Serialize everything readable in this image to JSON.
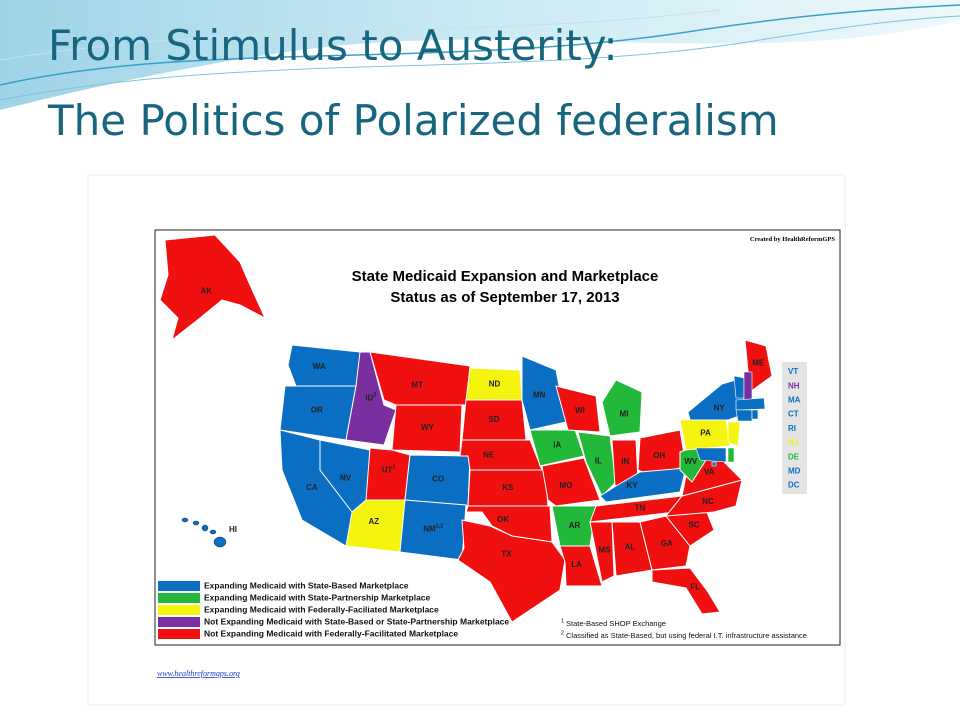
{
  "header": {
    "title_line_1": "From Stimulus to Austerity:",
    "title_line_2": "The Politics of Polarized federalism"
  },
  "map": {
    "title_line_1": "State Medicaid Expansion and Marketplace",
    "title_line_2": "Status as of September 17, 2013",
    "credit": "Created by HealthReformGPS",
    "legend": [
      {
        "color": "#0a6fc2",
        "label": "Expanding Medicaid with State-Based Marketplace"
      },
      {
        "color": "#22b83a",
        "label": "Expanding Medicaid with State-Partnership Marketplace"
      },
      {
        "color": "#f4f40e",
        "label": "Expanding Medicaid with Federally-Faciliated Marketplace"
      },
      {
        "color": "#7a2fa0",
        "label": "Not Expanding Medicaid with State-Based or State-Partnership Marketplace"
      },
      {
        "color": "#f01010",
        "label": "Not Expanding Medicaid with Federally-Facilitated Marketplace"
      }
    ],
    "states": [
      {
        "label": "AK",
        "status": 4
      },
      {
        "label": "HI",
        "status": 0
      },
      {
        "label": "WA",
        "status": 0
      },
      {
        "label": "OR",
        "status": 0
      },
      {
        "label": "CA",
        "status": 0
      },
      {
        "label": "NV",
        "status": 0
      },
      {
        "label": "ID",
        "note": "2",
        "status": 3
      },
      {
        "label": "MT",
        "status": 4
      },
      {
        "label": "WY",
        "status": 4
      },
      {
        "label": "UT",
        "note": "1",
        "status": 4
      },
      {
        "label": "CO",
        "status": 0
      },
      {
        "label": "AZ",
        "status": 2
      },
      {
        "label": "NM",
        "note": "1,2",
        "status": 0
      },
      {
        "label": "ND",
        "status": 2
      },
      {
        "label": "SD",
        "status": 4
      },
      {
        "label": "NE",
        "status": 4
      },
      {
        "label": "KS",
        "status": 4
      },
      {
        "label": "OK",
        "status": 4
      },
      {
        "label": "TX",
        "status": 4
      },
      {
        "label": "MN",
        "status": 0
      },
      {
        "label": "IA",
        "status": 1
      },
      {
        "label": "MO",
        "status": 4
      },
      {
        "label": "AR",
        "status": 1
      },
      {
        "label": "LA",
        "status": 4
      },
      {
        "label": "WI",
        "status": 4
      },
      {
        "label": "MI",
        "status": 1
      },
      {
        "label": "IL",
        "status": 1
      },
      {
        "label": "IN",
        "status": 4
      },
      {
        "label": "OH",
        "status": 4
      },
      {
        "label": "KY",
        "status": 0
      },
      {
        "label": "TN",
        "status": 4
      },
      {
        "label": "MS",
        "status": 4
      },
      {
        "label": "AL",
        "status": 4
      },
      {
        "label": "GA",
        "status": 4
      },
      {
        "label": "FL",
        "status": 4
      },
      {
        "label": "SC",
        "status": 4
      },
      {
        "label": "NC",
        "status": 4
      },
      {
        "label": "VA",
        "status": 4
      },
      {
        "label": "WV",
        "status": 1
      },
      {
        "label": "PA",
        "status": 2
      },
      {
        "label": "NY",
        "status": 0
      },
      {
        "label": "ME",
        "status": 4
      }
    ],
    "small_states": [
      {
        "label": "VT",
        "status": 0
      },
      {
        "label": "NH",
        "status": 3
      },
      {
        "label": "MA",
        "status": 0
      },
      {
        "label": "CT",
        "status": 0
      },
      {
        "label": "RI",
        "status": 0
      },
      {
        "label": "NJ",
        "status": 2
      },
      {
        "label": "DE",
        "status": 1
      },
      {
        "label": "MD",
        "status": 0
      },
      {
        "label": "DC",
        "status": 0
      }
    ],
    "footnotes": [
      {
        "mark": "1",
        "text": "State-Based SHOP Exchange"
      },
      {
        "mark": "2",
        "text": "Classified as State-Based, but using federal I.T. infrastructure assistance"
      }
    ],
    "source_url": "www.healthreformgps.org"
  }
}
